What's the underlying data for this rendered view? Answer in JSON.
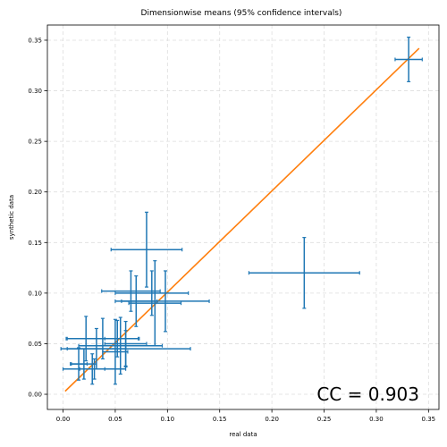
{
  "chart_data": {
    "type": "scatter",
    "title": "Dimensionwise means (95% confidence intervals)",
    "xlabel": "real data",
    "ylabel": "synthetic data",
    "xlim": [
      -0.015,
      0.36
    ],
    "ylim": [
      -0.015,
      0.365
    ],
    "xticks": [
      0.0,
      0.05,
      0.1,
      0.15,
      0.2,
      0.25,
      0.3,
      0.35
    ],
    "yticks": [
      0.0,
      0.05,
      0.1,
      0.15,
      0.2,
      0.25,
      0.3,
      0.35
    ],
    "xtick_labels": [
      "0.00",
      "0.05",
      "0.10",
      "0.15",
      "0.20",
      "0.25",
      "0.30",
      "0.35"
    ],
    "ytick_labels": [
      "0.00",
      "0.05",
      "0.10",
      "0.15",
      "0.20",
      "0.25",
      "0.30",
      "0.35"
    ],
    "grid": true,
    "annotation": "CC = 0.903",
    "errorbar_color": "#1f77b4",
    "line_color": "#ff7f0e",
    "points": [
      {
        "x": 0.331,
        "y": 0.331,
        "xerr": 0.013,
        "yerr": 0.022
      },
      {
        "x": 0.231,
        "y": 0.12,
        "xerr": 0.053,
        "yerr": 0.035
      },
      {
        "x": 0.08,
        "y": 0.143,
        "xerr": 0.034,
        "yerr": 0.037
      },
      {
        "x": 0.085,
        "y": 0.1,
        "xerr": 0.035,
        "yerr": 0.022
      },
      {
        "x": 0.065,
        "y": 0.102,
        "xerr": 0.028,
        "yerr": 0.02
      },
      {
        "x": 0.098,
        "y": 0.092,
        "xerr": 0.042,
        "yerr": 0.03
      },
      {
        "x": 0.07,
        "y": 0.092,
        "xerr": 0.02,
        "yerr": 0.025
      },
      {
        "x": 0.088,
        "y": 0.09,
        "xerr": 0.025,
        "yerr": 0.042
      },
      {
        "x": 0.038,
        "y": 0.055,
        "xerr": 0.035,
        "yerr": 0.02
      },
      {
        "x": 0.022,
        "y": 0.055,
        "xerr": 0.018,
        "yerr": 0.022
      },
      {
        "x": 0.06,
        "y": 0.05,
        "xerr": 0.02,
        "yerr": 0.022
      },
      {
        "x": 0.055,
        "y": 0.048,
        "xerr": 0.04,
        "yerr": 0.028
      },
      {
        "x": 0.06,
        "y": 0.045,
        "xerr": 0.062,
        "yerr": 0.018
      },
      {
        "x": 0.032,
        "y": 0.045,
        "xerr": 0.028,
        "yerr": 0.02
      },
      {
        "x": 0.02,
        "y": 0.03,
        "xerr": 0.012,
        "yerr": 0.015
      },
      {
        "x": 0.015,
        "y": 0.03,
        "xerr": 0.008,
        "yerr": 0.016
      },
      {
        "x": 0.05,
        "y": 0.042,
        "xerr": 0.012,
        "yerr": 0.032
      },
      {
        "x": 0.028,
        "y": 0.025,
        "xerr": 0.012,
        "yerr": 0.015
      },
      {
        "x": 0.03,
        "y": 0.025,
        "xerr": 0.03,
        "yerr": 0.01
      },
      {
        "x": 0.052,
        "y": 0.055,
        "xerr": 0.02,
        "yerr": 0.018
      }
    ],
    "fit_line": {
      "x": [
        0.002,
        0.341
      ],
      "y": [
        0.003,
        0.342
      ]
    }
  }
}
